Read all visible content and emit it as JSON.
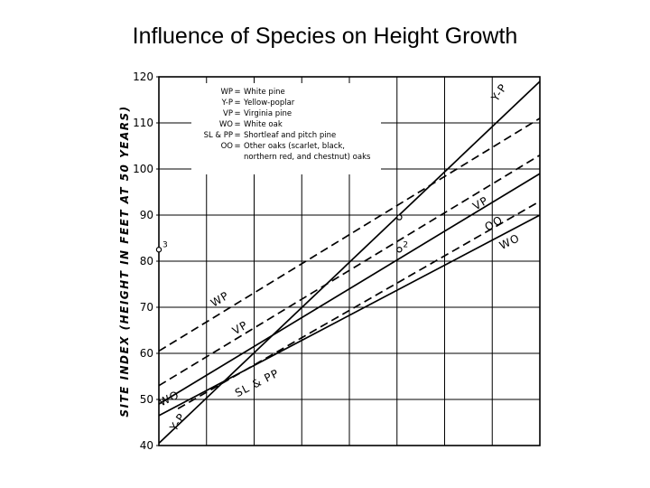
{
  "title": "Influence of Species on Height Growth",
  "chart_data": {
    "type": "line",
    "title": "Influence of Species on Height Growth",
    "xlabel": "",
    "ylabel": "SITE INDEX (HEIGHT IN FEET AT 50 YEARS)",
    "ylim": [
      40,
      120
    ],
    "xlim": [
      0,
      8
    ],
    "yticks": [
      "40",
      "50",
      "60",
      "70",
      "80",
      "90",
      "100",
      "110",
      "120"
    ],
    "grid": true,
    "legend": [
      {
        "code": "WP",
        "eq": "=",
        "name": "White pine"
      },
      {
        "code": "Y-P",
        "eq": "=",
        "name": "Yellow-poplar"
      },
      {
        "code": "VP",
        "eq": "=",
        "name": "Virginia pine"
      },
      {
        "code": "WO",
        "eq": "=",
        "name": "White oak"
      },
      {
        "code": "SL & PP",
        "eq": "=",
        "name": "Shortleaf and pitch pine"
      },
      {
        "code": "OO",
        "eq": "=",
        "name": "Other oaks (scarlet, black,"
      },
      {
        "code": "",
        "eq": "",
        "name": "northern red, and chestnut) oaks"
      }
    ],
    "series": [
      {
        "name": "Y-P",
        "style": "solid",
        "x": [
          0,
          8
        ],
        "y": [
          40.5,
          119
        ]
      },
      {
        "name": "WP",
        "style": "dashed",
        "x": [
          0,
          8
        ],
        "y": [
          60.5,
          111
        ]
      },
      {
        "name": "VP",
        "style": "dashed",
        "x": [
          0,
          8
        ],
        "y": [
          53,
          103
        ]
      },
      {
        "name": "OO",
        "style": "solid",
        "x": [
          0,
          8
        ],
        "y": [
          49,
          99
        ]
      },
      {
        "name": "WO",
        "style": "solid",
        "x": [
          0,
          8
        ],
        "y": [
          46.5,
          90
        ]
      },
      {
        "name": "SL & PP",
        "style": "dashed",
        "x": [
          0.4,
          8
        ],
        "y": [
          48,
          93
        ]
      }
    ],
    "line_labels": [
      {
        "text": "Y-P",
        "x": 7.1,
        "y": 114.5,
        "angle": -56
      },
      {
        "text": "WP",
        "x": 1.15,
        "y": 70,
        "angle": -31
      },
      {
        "text": "VP",
        "x": 1.6,
        "y": 64,
        "angle": -30
      },
      {
        "text": "VP",
        "x": 6.65,
        "y": 91,
        "angle": -30
      },
      {
        "text": "OO",
        "x": 6.9,
        "y": 86.5,
        "angle": -30
      },
      {
        "text": "WO",
        "x": 0.05,
        "y": 48.5,
        "angle": -26
      },
      {
        "text": "WO",
        "x": 7.2,
        "y": 82.5,
        "angle": -26
      },
      {
        "text": "SL & PP",
        "x": 1.65,
        "y": 50.5,
        "angle": -27
      },
      {
        "text": "Y-P",
        "x": 0.35,
        "y": 43,
        "angle": -56
      }
    ],
    "markers": [
      {
        "label": "3",
        "x": 0,
        "y": 82.5
      },
      {
        "label": "2",
        "x": 5.05,
        "y": 82.5
      },
      {
        "label": "",
        "x": 5.05,
        "y": 89.5
      }
    ]
  }
}
